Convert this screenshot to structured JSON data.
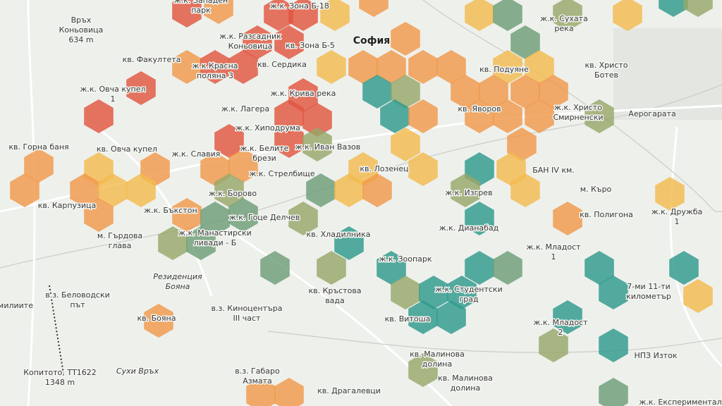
{
  "labels": [
    [
      "ж.к. Западен",
      "парк"
    ],
    [
      "ж.к. Зона Б-18"
    ],
    [
      "Връх",
      "Коньовица",
      "634 m"
    ],
    [
      "ж.к. Сухата",
      "река"
    ],
    [
      "ж.к. Разсадник",
      "Коньовица"
    ],
    [
      "кв. Зона Б-5"
    ],
    [
      "София"
    ],
    [
      "кв. Факултета"
    ],
    [
      "ж.к.Красна",
      "поляна 3"
    ],
    [
      "кв. Сердика"
    ],
    [
      "кв. Подуяне"
    ],
    [
      "кв. Христо",
      "Ботев"
    ],
    [
      "ж.к. Овча купел",
      "1"
    ],
    [
      "ж.к. Крива река"
    ],
    [
      "ж.к. Лагера"
    ],
    [
      "кв. Яворов"
    ],
    [
      "ж.к. Христо",
      "Смирненски"
    ],
    [
      "Аерогарата"
    ],
    [
      "ж.к. Хиподрума"
    ],
    [
      "кв. Горна баня"
    ],
    [
      "кв. Овча купел"
    ],
    [
      "ж.к. Славия"
    ],
    [
      "ж.к. Белите",
      "брези"
    ],
    [
      "ж.к. Иван Вазов"
    ],
    [
      "ж.к. Стрелбище"
    ],
    [
      "кв. Лозенец"
    ],
    [
      "БАН IV км."
    ],
    [
      "кв. Карпузица"
    ],
    [
      "ж.к. Борово"
    ],
    [
      "ж.к. Изгрев"
    ],
    [
      "м. Къро"
    ],
    [
      "ж.к. Бъкстон"
    ],
    [
      "ж.к. Гоце Делчев"
    ],
    [
      "кв. Полигона"
    ],
    [
      "ж.к. Дружба",
      "1"
    ],
    [
      "ж.к. Манастирски",
      "ливади - Б"
    ],
    [
      "ж.к. Дианабад"
    ],
    [
      "кв. Хладилника"
    ],
    [
      "м. Гърдова",
      "глава"
    ],
    [
      "ж.к. Младост",
      "1"
    ],
    [
      "ж.к. Зоопарк"
    ],
    [
      "Резиденция",
      "Бояна"
    ],
    [
      "в.з. Беловодски",
      "път"
    ],
    [
      "ж.к. Студентски",
      "град"
    ],
    [
      "7-ми 11-ти",
      "километър"
    ],
    [
      "кв. Кръстова",
      "вада"
    ],
    [
      "в.з. Киноцентъра",
      "III част"
    ],
    [
      "кв. Бояна"
    ],
    [
      "кв. Витоша"
    ],
    [
      "ж.к. Младост",
      "2"
    ],
    [
      "Копитото, ТТ1622",
      "1348 m"
    ],
    [
      "Сухи Връх"
    ],
    [
      "в.з. Габаро",
      "Азмата"
    ],
    [
      "кв. Малинова",
      "долина"
    ],
    [
      "кв. Малинова",
      "долина"
    ],
    [
      "кв. Драгалевци"
    ],
    [
      "НПЗ Изток"
    ],
    [
      "ж.к. Експериментал"
    ],
    [
      "милиите"
    ]
  ]
}
